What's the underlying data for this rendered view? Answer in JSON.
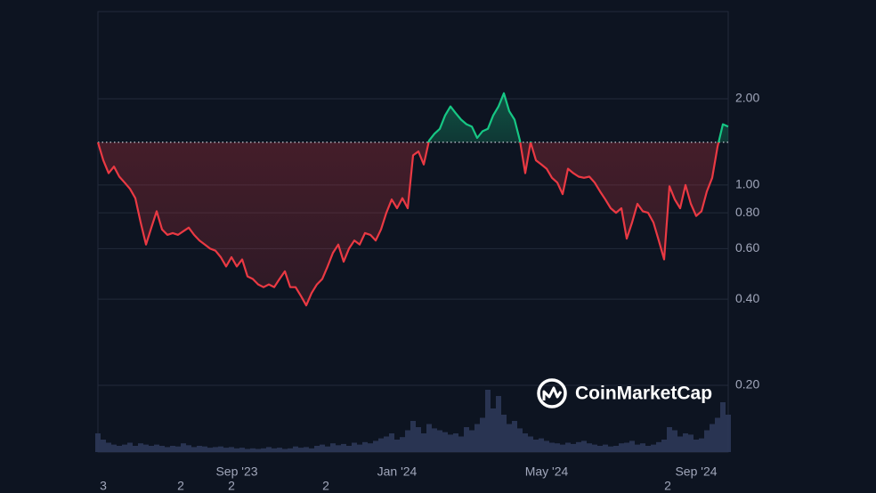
{
  "chart_data": {
    "type": "line",
    "log_scale": true,
    "grid": true,
    "up_color": "#16c784",
    "down_color": "#ea3943",
    "volume_color": "#2c3758",
    "baseline": 1.41,
    "watermark": "CoinMarketCap",
    "bottom_row_labels": [
      "3",
      "2",
      "2",
      "2",
      "2"
    ],
    "ylim": [
      0.117,
      4.03
    ],
    "yticks": [
      {
        "value": 0.2,
        "label": "0.20"
      },
      {
        "value": 0.4,
        "label": "0.40"
      },
      {
        "value": 0.6,
        "label": "0.60"
      },
      {
        "value": 0.8,
        "label": "0.80"
      },
      {
        "value": 1,
        "label": "1.00"
      },
      {
        "value": 2,
        "label": "2.00"
      }
    ],
    "categories": [
      null,
      null,
      null,
      null,
      null,
      null,
      null,
      null,
      null,
      null,
      null,
      null,
      null,
      null,
      null,
      null,
      null,
      null,
      null,
      null,
      null,
      null,
      null,
      null,
      null,
      null,
      "Sep '23",
      null,
      null,
      null,
      null,
      null,
      null,
      null,
      null,
      null,
      null,
      null,
      null,
      null,
      null,
      null,
      null,
      null,
      null,
      null,
      null,
      null,
      null,
      null,
      null,
      null,
      null,
      null,
      null,
      null,
      "Jan '24",
      null,
      null,
      null,
      null,
      null,
      null,
      null,
      null,
      null,
      null,
      null,
      null,
      null,
      null,
      null,
      null,
      null,
      null,
      null,
      null,
      null,
      null,
      null,
      null,
      null,
      null,
      null,
      "May '24",
      null,
      null,
      null,
      null,
      null,
      null,
      null,
      null,
      null,
      null,
      null,
      null,
      null,
      null,
      null,
      null,
      null,
      null,
      null,
      null,
      null,
      null,
      null,
      null,
      null,
      null,
      null,
      "Sep '24",
      null,
      null,
      null,
      null,
      null,
      null
    ],
    "values": [
      1.41,
      1.22,
      1.1,
      1.16,
      1.07,
      1.02,
      0.97,
      0.9,
      0.74,
      0.62,
      0.71,
      0.81,
      0.7,
      0.67,
      0.68,
      0.67,
      0.69,
      0.71,
      0.67,
      0.64,
      0.62,
      0.6,
      0.59,
      0.56,
      0.52,
      0.56,
      0.52,
      0.55,
      0.48,
      0.47,
      0.45,
      0.44,
      0.45,
      0.44,
      0.47,
      0.5,
      0.44,
      0.44,
      0.41,
      0.38,
      0.42,
      0.45,
      0.47,
      0.52,
      0.58,
      0.62,
      0.54,
      0.6,
      0.64,
      0.62,
      0.68,
      0.67,
      0.64,
      0.7,
      0.8,
      0.89,
      0.83,
      0.9,
      0.83,
      1.27,
      1.31,
      1.18,
      1.43,
      1.51,
      1.57,
      1.75,
      1.88,
      1.78,
      1.69,
      1.63,
      1.6,
      1.46,
      1.54,
      1.57,
      1.75,
      1.88,
      2.09,
      1.81,
      1.69,
      1.43,
      1.1,
      1.41,
      1.22,
      1.18,
      1.14,
      1.06,
      1.02,
      0.93,
      1.14,
      1.1,
      1.07,
      1.06,
      1.07,
      1.02,
      0.95,
      0.89,
      0.83,
      0.8,
      0.83,
      0.65,
      0.74,
      0.86,
      0.81,
      0.8,
      0.74,
      0.64,
      0.55,
      0.99,
      0.89,
      0.83,
      1.0,
      0.86,
      0.78,
      0.81,
      0.95,
      1.06,
      1.36,
      1.63,
      1.6
    ],
    "volume": {
      "values": [
        30,
        20,
        15,
        12,
        10,
        12,
        15,
        10,
        14,
        12,
        10,
        12,
        10,
        8,
        10,
        9,
        14,
        11,
        8,
        10,
        9,
        7,
        8,
        9,
        7,
        8,
        6,
        7,
        5,
        6,
        5,
        6,
        8,
        6,
        7,
        5,
        6,
        9,
        7,
        8,
        6,
        10,
        12,
        9,
        14,
        11,
        13,
        10,
        15,
        12,
        16,
        14,
        18,
        22,
        25,
        30,
        20,
        24,
        35,
        50,
        40,
        30,
        45,
        38,
        35,
        32,
        28,
        30,
        25,
        40,
        35,
        45,
        55,
        100,
        70,
        90,
        60,
        45,
        50,
        38,
        30,
        25,
        20,
        22,
        18,
        15,
        14,
        12,
        15,
        13,
        16,
        18,
        14,
        12,
        10,
        12,
        9,
        10,
        14,
        15,
        18,
        12,
        14,
        10,
        12,
        16,
        20,
        40,
        35,
        25,
        30,
        28,
        20,
        22,
        35,
        45,
        55,
        80,
        60
      ]
    }
  }
}
